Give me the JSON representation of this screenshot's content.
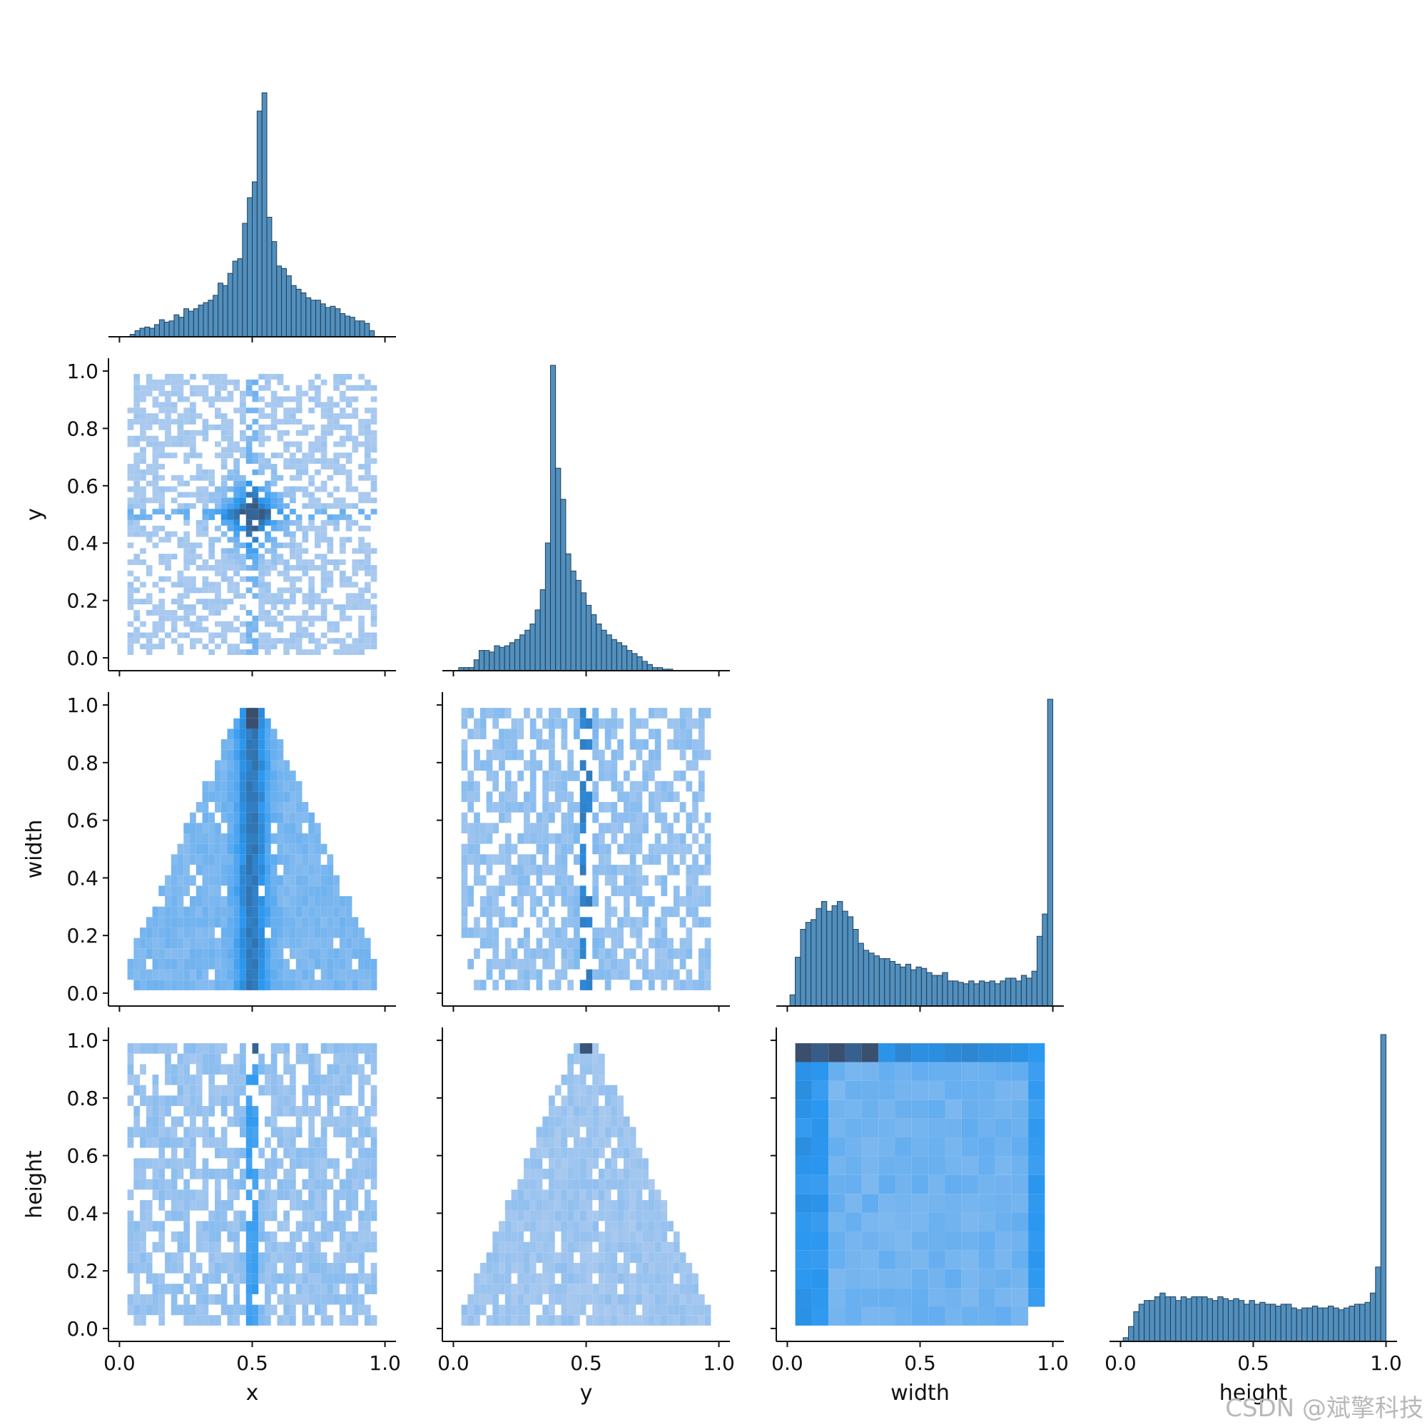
{
  "watermark": "CSDN @斌擎科技",
  "colors": {
    "bar": "#3f83b6",
    "bar_edge": "#1f3f5a",
    "heat_low": "#a9c9ef",
    "heat_mid": "#2a97f0",
    "heat_high": "#3a4f6e",
    "axis": "#111111"
  },
  "chart_data": {
    "type": "pairplot",
    "corner": true,
    "variables": [
      "x",
      "y",
      "width",
      "height"
    ],
    "axis_labels": {
      "x": "x",
      "y": "y",
      "width": "width",
      "height": "height"
    },
    "tick_values": [
      0.0,
      0.5,
      1.0
    ],
    "y_tick_values": [
      0.0,
      0.2,
      0.4,
      0.6,
      0.8,
      1.0
    ],
    "tick_labels": [
      "0.0",
      "0.5",
      "1.0"
    ],
    "y_tick_labels": [
      "0.0",
      "0.2",
      "0.4",
      "0.6",
      "0.8",
      "1.0"
    ],
    "diagonal": {
      "x": {
        "type": "histogram",
        "range": [
          0.04,
          0.96
        ],
        "counts": [
          2,
          5,
          7,
          8,
          7,
          10,
          14,
          12,
          13,
          18,
          16,
          23,
          21,
          23,
          26,
          28,
          30,
          34,
          44,
          42,
          52,
          62,
          64,
          93,
          114,
          127,
          185,
          200,
          98,
          78,
          58,
          56,
          50,
          42,
          39,
          36,
          32,
          30,
          30,
          27,
          24,
          25,
          23,
          19,
          17,
          16,
          13,
          13,
          11,
          5
        ]
      },
      "y": {
        "type": "histogram",
        "range": [
          0.02,
          0.98
        ],
        "counts": [
          2,
          2,
          2,
          7,
          13,
          13,
          12,
          16,
          15,
          16,
          18,
          20,
          23,
          26,
          30,
          39,
          52,
          82,
          196,
          130,
          110,
          75,
          64,
          58,
          50,
          42,
          36,
          30,
          26,
          23,
          20,
          18,
          16,
          13,
          11,
          9,
          6,
          4,
          2,
          2,
          1,
          1,
          0,
          0,
          0,
          0,
          0,
          0,
          0,
          0
        ]
      },
      "width": {
        "type": "histogram",
        "range": [
          0.01,
          1.0
        ],
        "counts": [
          8,
          35,
          55,
          60,
          62,
          70,
          75,
          68,
          72,
          75,
          68,
          64,
          55,
          45,
          40,
          38,
          36,
          34,
          34,
          32,
          30,
          28,
          30,
          26,
          28,
          27,
          24,
          22,
          22,
          24,
          18,
          18,
          17,
          16,
          18,
          16,
          18,
          17,
          18,
          16,
          18,
          20,
          20,
          18,
          22,
          20,
          25,
          50,
          66,
          220
        ]
      },
      "height": {
        "type": "histogram",
        "range": [
          0.01,
          1.0
        ],
        "counts": [
          2,
          8,
          16,
          20,
          22,
          22,
          24,
          26,
          24,
          24,
          22,
          24,
          23,
          24,
          24,
          24,
          23,
          22,
          24,
          23,
          22,
          23,
          22,
          20,
          22,
          20,
          21,
          20,
          20,
          19,
          20,
          20,
          18,
          17,
          18,
          18,
          19,
          18,
          18,
          19,
          18,
          17,
          18,
          19,
          20,
          20,
          21,
          26,
          40,
          165
        ]
      }
    },
    "heatmaps": [
      {
        "row": "y",
        "col": "x",
        "description": "2D histogram, sparse bins with dense cross at (0.5, 0.5)"
      },
      {
        "row": "width",
        "col": "x",
        "description": "triangular density peaked at x=0.5 near width=1.0"
      },
      {
        "row": "width",
        "col": "y",
        "description": "dense vertical band at y=0.5"
      },
      {
        "row": "height",
        "col": "x",
        "description": "dense vertical band at x=0.5, hot cell at height=1.0"
      },
      {
        "row": "height",
        "col": "y",
        "description": "triangular density peaked at y=0.5 near height=1.0"
      },
      {
        "row": "height",
        "col": "width",
        "description": "dense row at height=1.0, dense column near width=0.05"
      }
    ]
  }
}
